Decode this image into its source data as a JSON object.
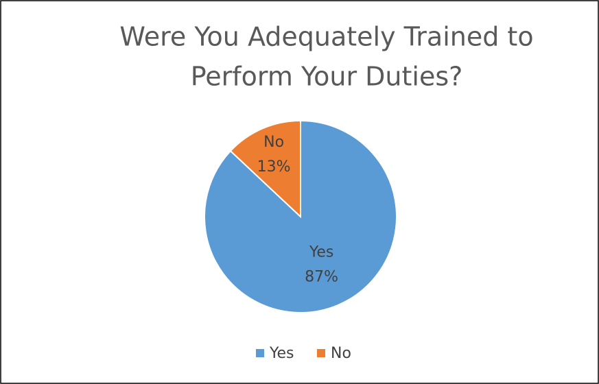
{
  "chart_data": {
    "type": "pie",
    "title": [
      "Were You Adequately Trained to",
      "Perform Your Duties?"
    ],
    "categories": [
      "Yes",
      "No"
    ],
    "values": [
      87,
      13
    ],
    "value_labels": [
      "87%",
      "13%"
    ],
    "colors": [
      "#5b9bd5",
      "#ed7d31"
    ],
    "legend": "bottom"
  }
}
